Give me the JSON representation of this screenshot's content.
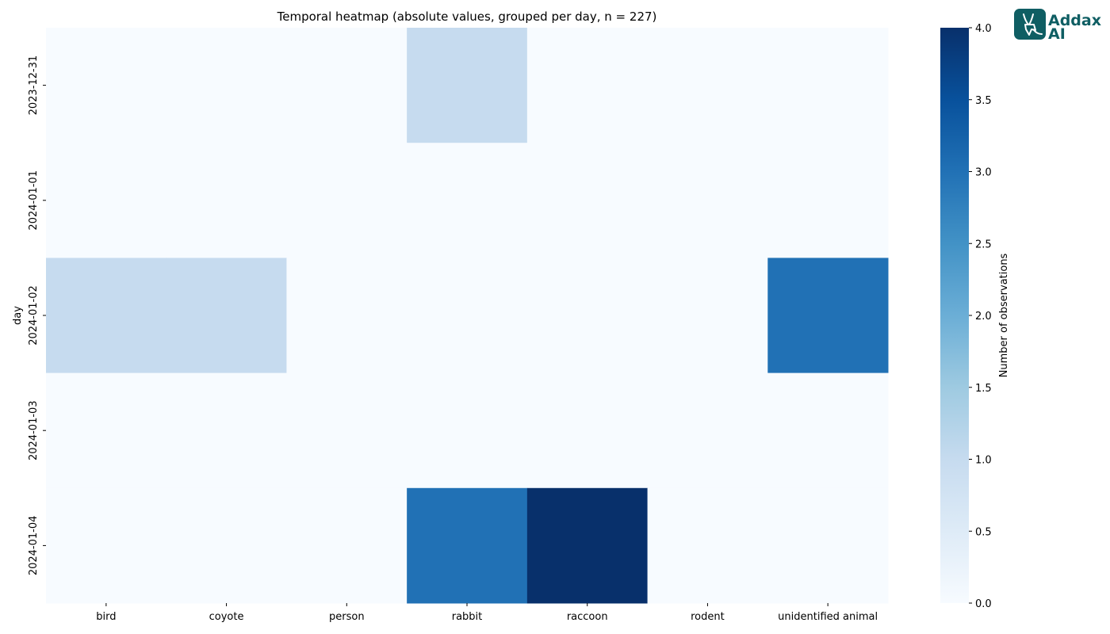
{
  "logo": {
    "line1": "Addax",
    "line2": "AI",
    "icon": "antelope-icon",
    "color": "#0f5e63"
  },
  "chart_data": {
    "type": "heatmap",
    "title": "Temporal heatmap (absolute values, grouped per day, n = 227)",
    "xlabel": "",
    "ylabel": "day",
    "x_categories": [
      "bird",
      "coyote",
      "person",
      "rabbit",
      "raccoon",
      "rodent",
      "unidentified animal"
    ],
    "y_categories": [
      "2023-12-31",
      "2024-01-01",
      "2024-01-02",
      "2024-01-03",
      "2024-01-04"
    ],
    "values": [
      [
        0,
        0,
        0,
        1,
        0,
        0,
        0
      ],
      [
        0,
        0,
        0,
        0,
        0,
        0,
        0
      ],
      [
        1,
        1,
        0,
        0,
        0,
        0,
        3
      ],
      [
        0,
        0,
        0,
        0,
        0,
        0,
        0
      ],
      [
        0,
        0,
        0,
        3,
        4,
        0,
        0
      ]
    ],
    "colormap": "Blues",
    "colorbar": {
      "label": "Number of observations",
      "range": [
        0,
        4
      ],
      "ticks": [
        "0.0",
        "0.5",
        "1.0",
        "1.5",
        "2.0",
        "2.5",
        "3.0",
        "3.5",
        "4.0"
      ]
    }
  }
}
